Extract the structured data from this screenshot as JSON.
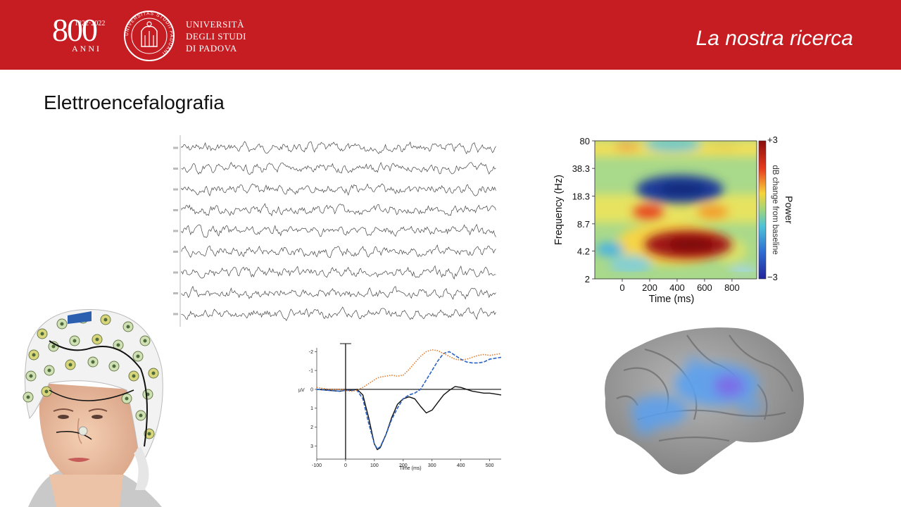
{
  "header": {
    "anniversary_number": "800",
    "anniversary_years": "1222·2022",
    "anniversary_word": "ANNI",
    "university_line1": "UNIVERSITÀ",
    "university_line2": "DEGLI STUDI",
    "university_line3": "DI PADOVA",
    "seal_text": "UNIVERSITAS STUDII PADUANI",
    "slide_title": "La nostra ricerca"
  },
  "content": {
    "title": "Elettroencefalografia"
  },
  "eeg_traces": {
    "channel_count": 9
  },
  "colors": {
    "brand_red": "#c61d23"
  },
  "chart_data": [
    {
      "type": "heatmap",
      "title": "",
      "xlabel": "Time (ms)",
      "ylabel": "Frequency (Hz)",
      "x_ticks": [
        "0",
        "200",
        "400",
        "600",
        "800"
      ],
      "y_ticks": [
        "80",
        "38.3",
        "18.3",
        "8.7",
        "4.2",
        "2"
      ],
      "colorbar_label": "Power",
      "colorbar_sublabel": "dB change from baseline",
      "colorbar_max": "+3",
      "colorbar_min": "−3",
      "xlim": [
        -200,
        980
      ],
      "ylim": [
        2,
        80
      ],
      "y_scale": "log",
      "regions": [
        {
          "label": "alpha-beta suppression",
          "t": 420,
          "f": 22,
          "value": -2.5
        },
        {
          "label": "theta increase",
          "t": 480,
          "f": 5.0,
          "value": 2.7
        },
        {
          "label": "beta burst early",
          "t": 190,
          "f": 12,
          "value": 2.2
        },
        {
          "label": "beta burst late",
          "t": 660,
          "f": 12,
          "value": 1.5
        }
      ]
    },
    {
      "type": "line",
      "title": "",
      "xlabel": "Time (ms)",
      "ylabel": "µV",
      "x_ticks": [
        "-100",
        "0",
        "100",
        "200",
        "300",
        "400",
        "500"
      ],
      "y_ticks": [
        "-2",
        "-1",
        "0",
        "1",
        "2",
        "3"
      ],
      "xlim": [
        -100,
        540
      ],
      "ylim": [
        -2.2,
        3.7
      ],
      "y_inverted": true,
      "x": [
        -100,
        -60,
        -20,
        0,
        20,
        40,
        60,
        80,
        100,
        110,
        120,
        140,
        160,
        180,
        200,
        220,
        240,
        260,
        280,
        300,
        320,
        340,
        360,
        380,
        400,
        420,
        440,
        460,
        480,
        500,
        520,
        540
      ],
      "series": [
        {
          "color": "#111111",
          "style": "solid",
          "values": [
            0,
            0.05,
            0.1,
            0.05,
            0.05,
            0,
            0.3,
            1.5,
            2.9,
            3.2,
            3.1,
            2.4,
            1.5,
            0.8,
            0.5,
            0.4,
            0.5,
            0.9,
            1.25,
            1.1,
            0.7,
            0.3,
            0.05,
            -0.15,
            -0.1,
            0,
            0.1,
            0.15,
            0.2,
            0.2,
            0.25,
            0.3
          ]
        },
        {
          "color": "#2b63c6",
          "style": "dashed",
          "values": [
            0,
            0.05,
            0.1,
            0.05,
            0.05,
            0.05,
            0.5,
            1.8,
            2.9,
            3.15,
            3.05,
            2.4,
            1.6,
            1.0,
            0.5,
            0.3,
            0.2,
            0.0,
            -0.5,
            -1.0,
            -1.5,
            -1.9,
            -2.0,
            -1.8,
            -1.6,
            -1.45,
            -1.4,
            -1.4,
            -1.45,
            -1.6,
            -1.65,
            -1.7
          ]
        },
        {
          "color": "#e07a2a",
          "style": "dotted",
          "values": [
            -0.1,
            0,
            0,
            0.05,
            0.1,
            0.05,
            -0.1,
            -0.3,
            -0.5,
            -0.6,
            -0.65,
            -0.7,
            -0.75,
            -0.7,
            -0.75,
            -1.05,
            -1.4,
            -1.75,
            -2.0,
            -2.1,
            -2.05,
            -1.9,
            -1.75,
            -1.6,
            -1.55,
            -1.6,
            -1.7,
            -1.8,
            -1.85,
            -1.8,
            -1.85,
            -1.9
          ]
        }
      ]
    }
  ],
  "images": {
    "eeg_cap_photo": "woman-wearing-eeg-cap",
    "brain_render": "cortical-surface-with-blue-activation"
  }
}
